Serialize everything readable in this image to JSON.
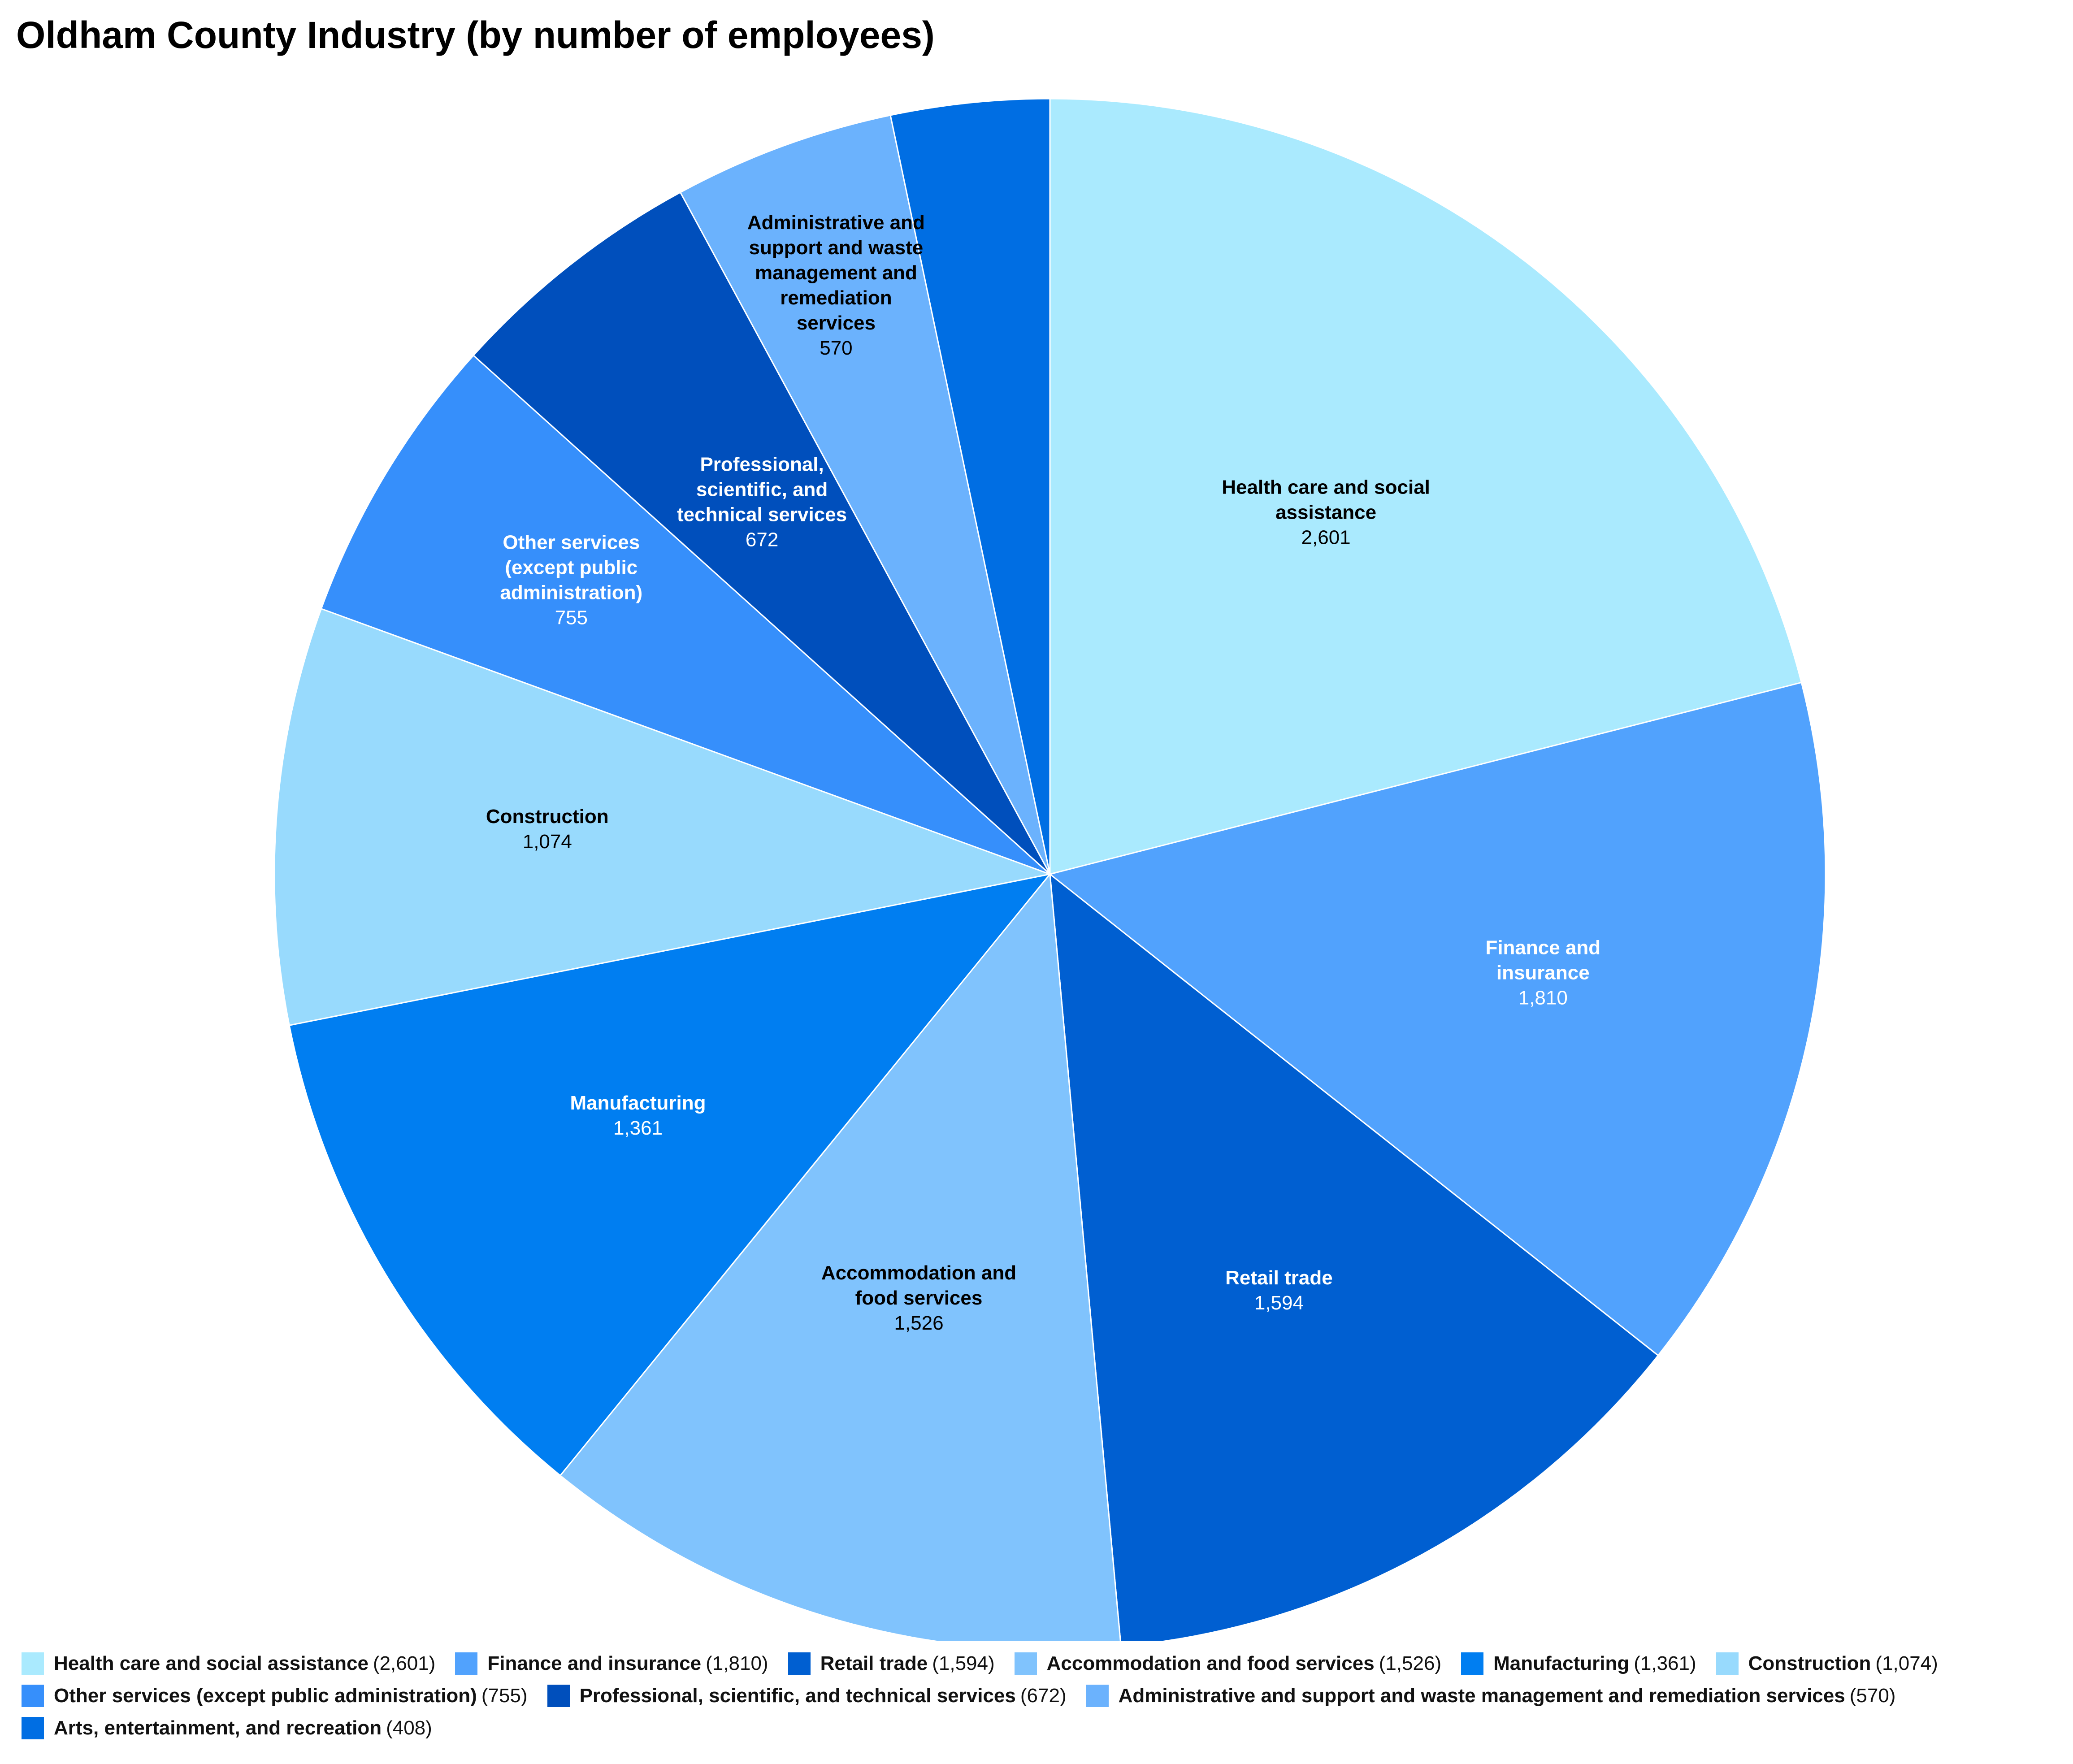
{
  "title": "Oldham County Industry (by number of employees)",
  "chart_data": {
    "type": "pie",
    "title": "Oldham County Industry (by number of employees)",
    "legend_position": "bottom",
    "slices": [
      {
        "label": "Health care and social assistance",
        "value": 2601,
        "value_label": "2,601",
        "chart_label_lines": [
          "Health care and social",
          "assistance"
        ],
        "color": "#aaeafe",
        "label_color": "#000000"
      },
      {
        "label": "Finance and insurance",
        "value": 1810,
        "value_label": "1,810",
        "chart_label_lines": [
          "Finance and",
          "insurance"
        ],
        "color": "#51a2fd",
        "label_color": "#ffffff"
      },
      {
        "label": "Retail trade",
        "value": 1594,
        "value_label": "1,594",
        "chart_label_lines": [
          "Retail trade"
        ],
        "color": "#005fd1",
        "label_color": "#ffffff"
      },
      {
        "label": "Accommodation and food services",
        "value": 1526,
        "value_label": "1,526",
        "chart_label_lines": [
          "Accommodation and",
          "food services"
        ],
        "color": "#80c3fd",
        "label_color": "#000000"
      },
      {
        "label": "Manufacturing",
        "value": 1361,
        "value_label": "1,361",
        "chart_label_lines": [
          "Manufacturing"
        ],
        "color": "#007ef1",
        "label_color": "#ffffff"
      },
      {
        "label": "Construction",
        "value": 1074,
        "value_label": "1,074",
        "chart_label_lines": [
          "Construction"
        ],
        "color": "#98dafd",
        "label_color": "#000000"
      },
      {
        "label": "Other services (except public administration)",
        "value": 755,
        "value_label": "755",
        "chart_label_lines": [
          "Other services",
          "(except public",
          "administration)"
        ],
        "color": "#368ffb",
        "label_color": "#ffffff"
      },
      {
        "label": "Professional, scientific, and technical services",
        "value": 672,
        "value_label": "672",
        "chart_label_lines": [
          "Professional,",
          "scientific, and",
          "technical services"
        ],
        "color": "#004fbc",
        "label_color": "#ffffff"
      },
      {
        "label": "Administrative and support and waste management and remediation services",
        "value": 570,
        "value_label": "570",
        "chart_label_lines": [
          "Administrative and",
          "support and waste",
          "management and",
          "remediation",
          "services"
        ],
        "color": "#6bb2fd",
        "label_color": "#000000"
      },
      {
        "label": "Arts, entertainment, and recreation",
        "value": 408,
        "value_label": "408",
        "chart_label_lines": [],
        "color": "#006ee3",
        "label_color": "#ffffff"
      }
    ]
  }
}
